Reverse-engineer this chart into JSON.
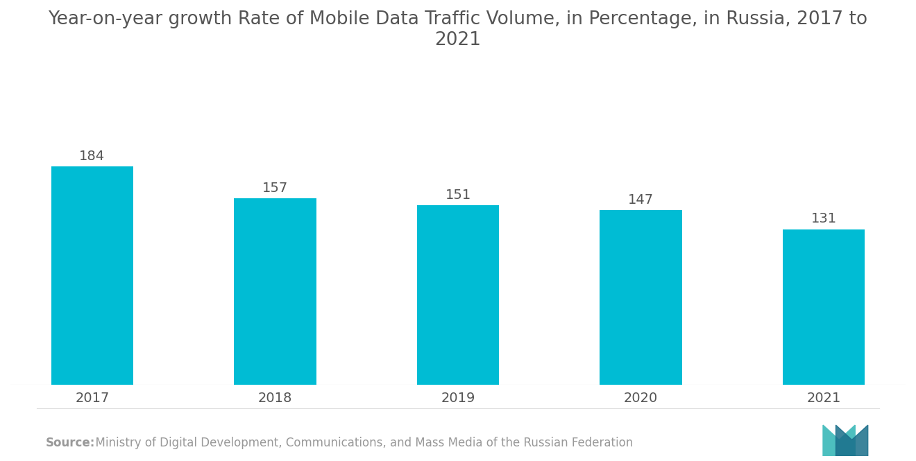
{
  "title": "Year-on-year growth Rate of Mobile Data Traffic Volume, in Percentage, in Russia, 2017 to\n2021",
  "categories": [
    "2017",
    "2018",
    "2019",
    "2020",
    "2021"
  ],
  "values": [
    184,
    157,
    151,
    147,
    131
  ],
  "bar_color": "#00BCD4",
  "background_color": "#ffffff",
  "label_color": "#555555",
  "value_label_fontsize": 14,
  "category_label_fontsize": 14,
  "title_fontsize": 19,
  "ylim": [
    0,
    270
  ],
  "bar_width": 0.45,
  "source_text_bold": "Source:",
  "source_text_regular": "  Ministry of Digital Development, Communications, and Mass Media of the Russian Federation",
  "source_fontsize": 12
}
